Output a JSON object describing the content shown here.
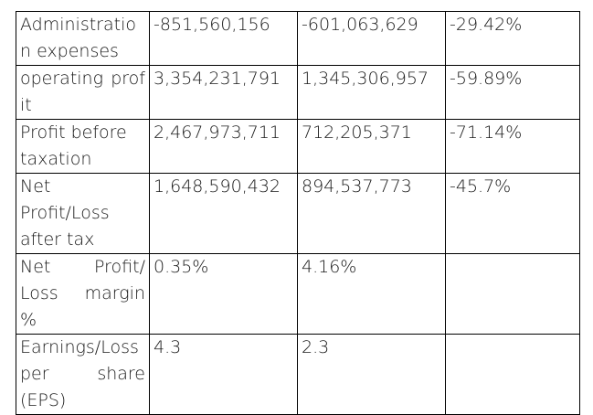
{
  "table": {
    "rows": [
      {
        "label": "Administration expenses",
        "v1": "-851,560,156",
        "v2": "-601,063,629",
        "change": "-29.42%"
      },
      {
        "label": "operating profit",
        "v1": "3,354,231,791",
        "v2": "1,345,306,957",
        "change": "-59.89%"
      },
      {
        "label_line1": "Profit before",
        "label_line2": "taxation",
        "v1": "2,467,973,711",
        "v2": "712,205,371",
        "change": "-71.14%"
      },
      {
        "label_line1": "Net",
        "label_line2": "Profit/Loss",
        "label_line3": "after tax",
        "v1": "1,648,590,432",
        "v2": "894,537,773",
        "change": "-45.7%"
      },
      {
        "label_line1a": "Net",
        "label_line1b": "Profit/",
        "label_line2": "Loss margin %",
        "v1": "0.35%",
        "v2": "4.16%",
        "change": ""
      },
      {
        "label_line1": "Earnings/Loss",
        "label_line2a": "per",
        "label_line2b": "share",
        "label_line3": "(EPS)",
        "v1": "4.3",
        "v2": "2.3",
        "change": ""
      }
    ]
  }
}
